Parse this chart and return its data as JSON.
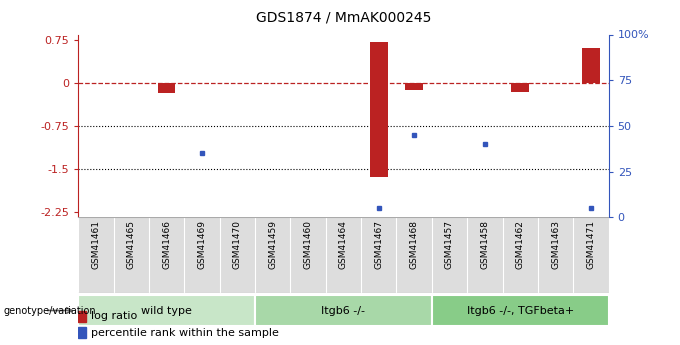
{
  "title": "GDS1874 / MmAK000245",
  "samples": [
    "GSM41461",
    "GSM41465",
    "GSM41466",
    "GSM41469",
    "GSM41470",
    "GSM41459",
    "GSM41460",
    "GSM41464",
    "GSM41467",
    "GSM41468",
    "GSM41457",
    "GSM41458",
    "GSM41462",
    "GSM41463",
    "GSM41471"
  ],
  "log_ratio": [
    0,
    0,
    -0.18,
    0,
    0,
    0,
    0,
    0,
    -1.65,
    -0.12,
    0,
    0,
    -0.15,
    0,
    0.62
  ],
  "bar_above": [
    0,
    0,
    0,
    0,
    0,
    0,
    0,
    0,
    0.72,
    0,
    0,
    0,
    0,
    0,
    0
  ],
  "pct_right": [
    null,
    null,
    null,
    35,
    null,
    null,
    null,
    null,
    5,
    45,
    null,
    40,
    null,
    null,
    5
  ],
  "groups": [
    {
      "label": "wild type",
      "start": 0,
      "end": 5,
      "color": "#c8e6c8"
    },
    {
      "label": "Itgb6 -/-",
      "start": 5,
      "end": 10,
      "color": "#a8d8a8"
    },
    {
      "label": "Itgb6 -/-, TGFbeta+",
      "start": 10,
      "end": 15,
      "color": "#88cc88"
    }
  ],
  "ylim": [
    -2.35,
    0.85
  ],
  "y2lim": [
    0,
    100
  ],
  "dotted_lines": [
    -0.75,
    -1.5
  ],
  "bar_color": "#bb2222",
  "dot_color": "#3355bb",
  "background_color": "#ffffff",
  "title_fontsize": 10,
  "sample_fontsize": 6.5,
  "group_fontsize": 8,
  "legend_fontsize": 8
}
